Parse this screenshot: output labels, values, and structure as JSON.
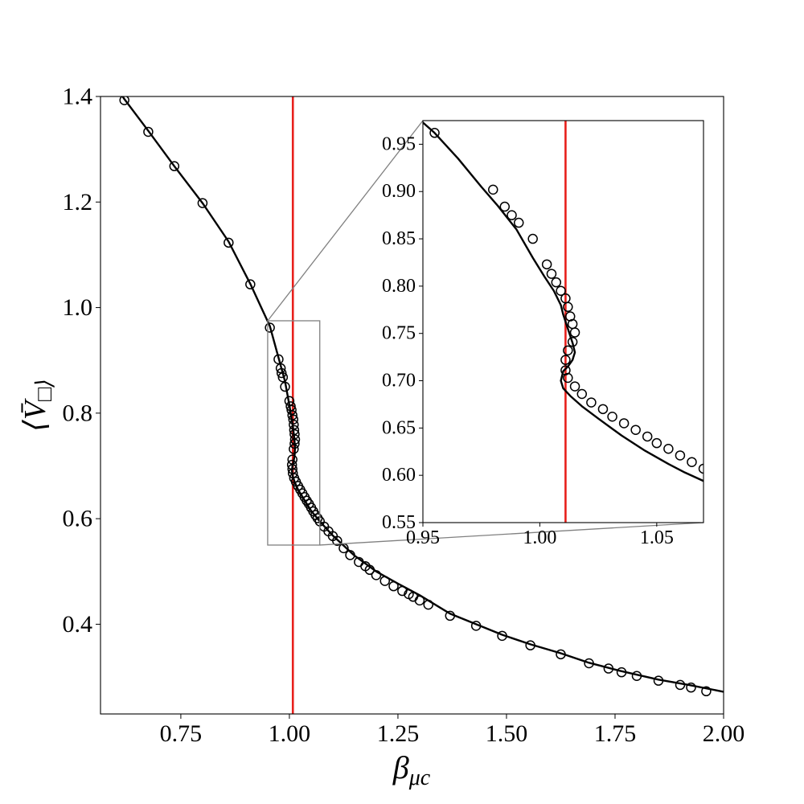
{
  "chart_data": [
    {
      "type": "scatter",
      "panel": "main",
      "xlabel": "β_μc",
      "ylabel": "⟨V̄_□⟩_μc",
      "xlim": [
        0.565,
        2.0
      ],
      "ylim": [
        0.23,
        1.4
      ],
      "xticks": [
        "0.75",
        "1.00",
        "1.25",
        "1.50",
        "1.75",
        "2.00"
      ],
      "yticks": [
        "0.4",
        "0.6",
        "0.8",
        "1.0",
        "1.2",
        "1.4"
      ],
      "grid": false,
      "vline_x": 1.008,
      "vline_color": "#e8201c",
      "zoom_region": {
        "x": [
          0.95,
          1.07
        ],
        "y": [
          0.55,
          0.975
        ]
      },
      "curve": {
        "x": [
          0.6,
          0.62,
          0.675,
          0.735,
          0.8,
          0.86,
          0.91,
          0.955,
          0.975,
          0.99,
          1.0,
          1.005,
          1.008,
          1.011,
          1.013,
          1.012,
          1.01,
          1.007,
          1.006,
          1.008,
          1.012,
          1.02,
          1.035,
          1.05,
          1.07,
          1.1,
          1.15,
          1.2,
          1.25,
          1.3,
          1.37,
          1.43,
          1.49,
          1.555,
          1.625,
          1.69,
          1.76,
          1.85,
          1.92,
          2.0
        ],
        "y": [
          1.42,
          1.395,
          1.335,
          1.268,
          1.198,
          1.125,
          1.045,
          0.965,
          0.905,
          0.86,
          0.815,
          0.79,
          0.775,
          0.755,
          0.735,
          0.72,
          0.71,
          0.7,
          0.69,
          0.68,
          0.67,
          0.655,
          0.635,
          0.615,
          0.595,
          0.568,
          0.53,
          0.5,
          0.477,
          0.455,
          0.42,
          0.4,
          0.38,
          0.362,
          0.345,
          0.327,
          0.312,
          0.295,
          0.285,
          0.272
        ]
      },
      "points": {
        "x": [
          0.62,
          0.675,
          0.735,
          0.8,
          0.86,
          0.91,
          0.955,
          0.975,
          0.98,
          0.982,
          0.985,
          0.99,
          1.0,
          1.003,
          1.005,
          1.007,
          1.009,
          1.01,
          1.011,
          1.012,
          1.013,
          1.012,
          1.01,
          1.007,
          1.006,
          1.007,
          1.008,
          1.011,
          1.015,
          1.02,
          1.025,
          1.03,
          1.035,
          1.04,
          1.045,
          1.05,
          1.055,
          1.06,
          1.065,
          1.07,
          1.08,
          1.09,
          1.1,
          1.11,
          1.125,
          1.14,
          1.16,
          1.175,
          1.185,
          1.2,
          1.22,
          1.24,
          1.26,
          1.275,
          1.285,
          1.3,
          1.32,
          1.37,
          1.43,
          1.49,
          1.555,
          1.625,
          1.69,
          1.735,
          1.765,
          1.8,
          1.85,
          1.9,
          1.925,
          1.96
        ],
        "y": [
          1.393,
          1.333,
          1.268,
          1.198,
          1.123,
          1.044,
          0.962,
          0.902,
          0.885,
          0.876,
          0.868,
          0.85,
          0.823,
          0.813,
          0.806,
          0.796,
          0.788,
          0.778,
          0.768,
          0.76,
          0.75,
          0.742,
          0.732,
          0.712,
          0.702,
          0.694,
          0.686,
          0.677,
          0.67,
          0.662,
          0.655,
          0.648,
          0.641,
          0.634,
          0.628,
          0.621,
          0.614,
          0.607,
          0.601,
          0.595,
          0.585,
          0.576,
          0.567,
          0.558,
          0.544,
          0.531,
          0.518,
          0.51,
          0.503,
          0.493,
          0.482,
          0.472,
          0.463,
          0.457,
          0.452,
          0.445,
          0.437,
          0.416,
          0.397,
          0.378,
          0.36,
          0.343,
          0.326,
          0.316,
          0.309,
          0.302,
          0.293,
          0.285,
          0.28,
          0.273
        ]
      }
    },
    {
      "type": "scatter",
      "panel": "inset",
      "xlim": [
        0.95,
        1.07
      ],
      "ylim": [
        0.55,
        0.975
      ],
      "xticks": [
        "0.95",
        "1.00",
        "1.05"
      ],
      "yticks": [
        "0.55",
        "0.60",
        "0.65",
        "0.70",
        "0.75",
        "0.80",
        "0.85",
        "0.90",
        "0.95"
      ],
      "grid": false,
      "vline_x": 1.011,
      "vline_color": "#e8201c",
      "curve": {
        "x": [
          0.95,
          0.955,
          0.965,
          0.975,
          0.982,
          0.99,
          0.997,
          1.002,
          1.006,
          1.009,
          1.01,
          1.012,
          1.014,
          1.015,
          1.014,
          1.012,
          1.01,
          1.009,
          1.01,
          1.013,
          1.018,
          1.025,
          1.035,
          1.045,
          1.055,
          1.062,
          1.07
        ],
        "y": [
          0.973,
          0.962,
          0.935,
          0.905,
          0.885,
          0.86,
          0.83,
          0.81,
          0.795,
          0.78,
          0.77,
          0.755,
          0.74,
          0.73,
          0.722,
          0.715,
          0.71,
          0.7,
          0.692,
          0.684,
          0.673,
          0.66,
          0.642,
          0.626,
          0.612,
          0.603,
          0.594
        ]
      },
      "points": {
        "x": [
          0.955,
          0.98,
          0.985,
          0.988,
          0.991,
          0.997,
          1.003,
          1.005,
          1.007,
          1.009,
          1.011,
          1.012,
          1.013,
          1.014,
          1.015,
          1.014,
          1.012,
          1.011,
          1.011,
          1.012,
          1.015,
          1.018,
          1.022,
          1.027,
          1.031,
          1.036,
          1.041,
          1.046,
          1.05,
          1.055,
          1.06,
          1.065,
          1.07
        ],
        "y": [
          0.962,
          0.902,
          0.884,
          0.875,
          0.867,
          0.85,
          0.823,
          0.813,
          0.804,
          0.795,
          0.787,
          0.778,
          0.768,
          0.76,
          0.751,
          0.741,
          0.732,
          0.722,
          0.711,
          0.703,
          0.694,
          0.686,
          0.677,
          0.67,
          0.662,
          0.655,
          0.648,
          0.641,
          0.634,
          0.628,
          0.621,
          0.614,
          0.607
        ]
      }
    }
  ]
}
